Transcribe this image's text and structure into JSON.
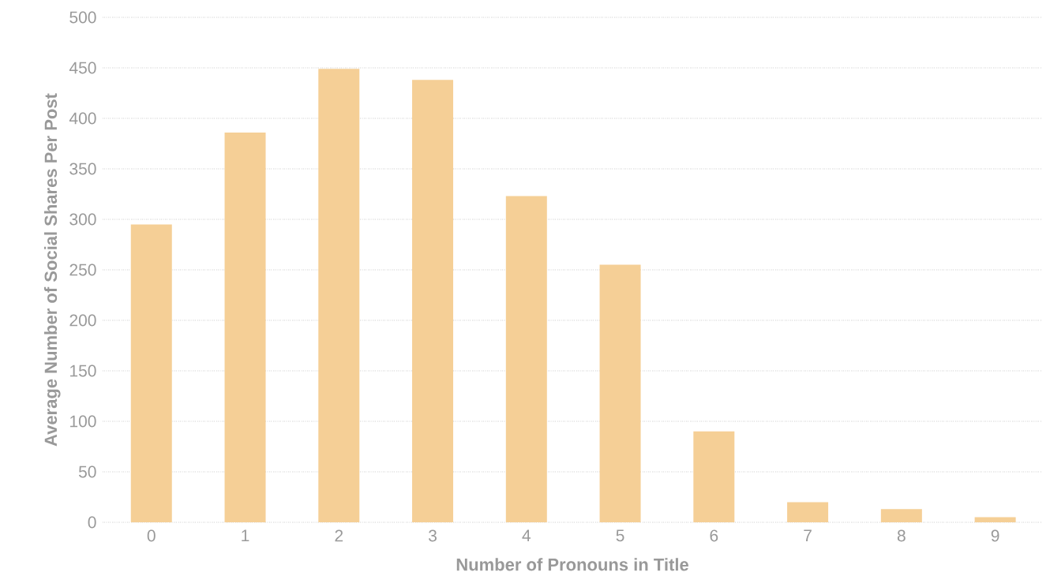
{
  "chart_data": {
    "type": "bar",
    "xlabel": "Number of Pronouns in Title",
    "ylabel": "Average Number of Social Shares Per Post",
    "categories": [
      "0",
      "1",
      "2",
      "3",
      "4",
      "5",
      "6",
      "7",
      "8",
      "9"
    ],
    "values": [
      295,
      386,
      449,
      438,
      323,
      255,
      90,
      20,
      13,
      5
    ],
    "color": "#f5cf96",
    "ylim": [
      0,
      500
    ],
    "yticks": [
      0,
      50,
      100,
      150,
      200,
      250,
      300,
      350,
      400,
      450,
      500
    ],
    "grid": "y"
  }
}
